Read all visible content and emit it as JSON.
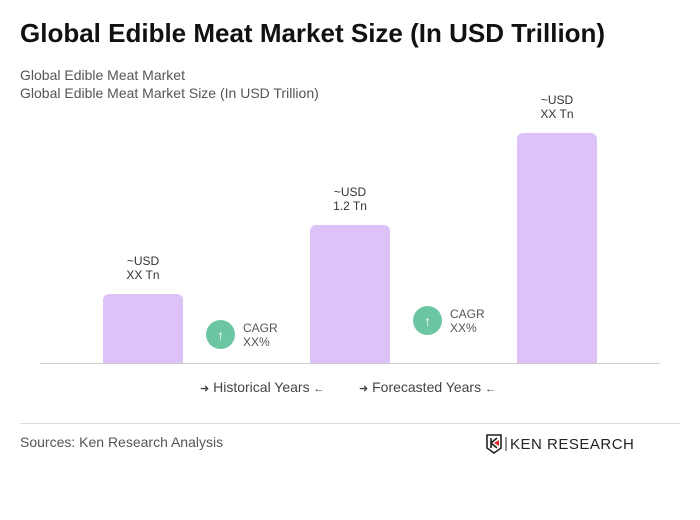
{
  "title": "Global Edible Meat Market Size (In USD Trillion)",
  "subtitle1": "Global Edible Meat Market",
  "subtitle2": "Global Edible Meat Market Size (In USD Trillion)",
  "chart_data": {
    "type": "bar",
    "values": [
      0.6,
      1.2,
      2.0
    ],
    "data_labels": [
      [
        "~USD",
        "XX Tn"
      ],
      [
        "~USD",
        "1.2 Tn"
      ],
      [
        "~USD",
        "XX Tn"
      ]
    ],
    "bar_color": "#dcc2f6",
    "cagr": [
      {
        "label": "CAGR",
        "value": "XX%"
      },
      {
        "label": "CAGR",
        "value": "XX%"
      }
    ],
    "cagr_color": "#6cc6a2",
    "legend": [
      "Historical Years",
      "Forecasted Years"
    ],
    "ylim": [
      0,
      2.0
    ],
    "grid": false
  },
  "sources": "Sources: Ken Research Analysis",
  "logo": "KEN RESEARCH"
}
